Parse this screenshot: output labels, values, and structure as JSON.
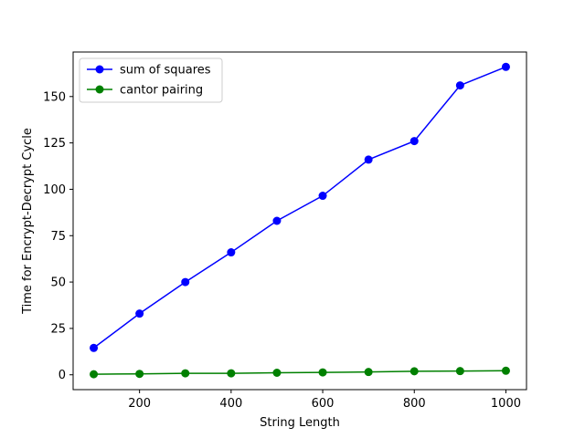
{
  "chart_data": {
    "type": "line",
    "xlabel": "String Length",
    "ylabel": "Time for Encrypt-Decrypt Cycle",
    "x": [
      100,
      200,
      300,
      400,
      500,
      600,
      700,
      800,
      900,
      1000
    ],
    "xlim": [
      55,
      1045
    ],
    "ylim": [
      -8,
      174
    ],
    "xticks": [
      200,
      400,
      600,
      800,
      1000
    ],
    "yticks": [
      0,
      25,
      50,
      75,
      100,
      125,
      150
    ],
    "grid": false,
    "legend_position": "top-left",
    "series": [
      {
        "name": "sum of squares",
        "color": "#0000ff",
        "values": [
          14.5,
          33,
          50,
          66,
          83,
          96.5,
          116,
          126,
          156,
          166
        ]
      },
      {
        "name": "cantor pairing",
        "color": "#008000",
        "values": [
          0.3,
          0.5,
          0.8,
          0.8,
          1.1,
          1.3,
          1.5,
          1.9,
          2.0,
          2.2
        ]
      }
    ]
  }
}
